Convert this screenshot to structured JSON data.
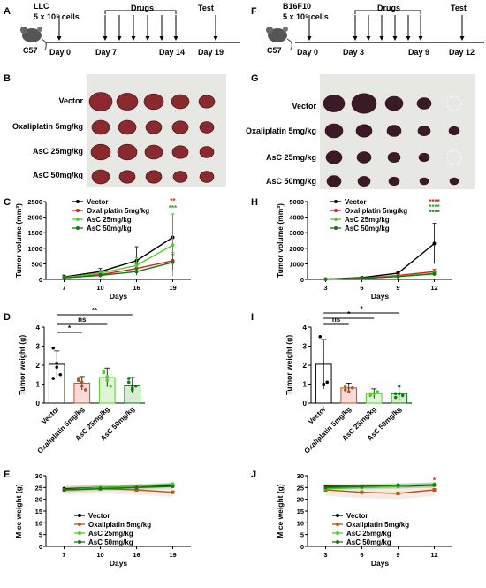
{
  "panels": {
    "A": "A",
    "B": "B",
    "C": "C",
    "D": "D",
    "E": "E",
    "F": "F",
    "G": "G",
    "H": "H",
    "I": "I",
    "J": "J"
  },
  "timelineA": {
    "model": "LLC",
    "cells": "5 x 10⁵ cells",
    "mouse": "C57",
    "drugs_label": "Drugs",
    "test_label": "Test",
    "days": [
      "Day 0",
      "Day 7",
      "Day 14",
      "Day 19"
    ]
  },
  "timelineF": {
    "model": "B16F10",
    "cells": "5 x 10⁵ cells",
    "mouse": "C57",
    "drugs_label": "Drugs",
    "test_label": "Test",
    "days": [
      "Day 0",
      "Day 3",
      "Day 9",
      "Day 12"
    ]
  },
  "groups": [
    "Vector",
    "Oxaliplatin 5mg/kg",
    "AsC 25mg/kg",
    "AsC 50mg/kg"
  ],
  "colors": {
    "vector": "#000000",
    "oxaliplatin": "#d42020",
    "asc25": "#55cc33",
    "asc50": "#117711",
    "ox_weight": "#b8561b"
  },
  "chart_data": [
    {
      "panel": "C",
      "type": "line",
      "x": [
        7,
        10,
        16,
        19
      ],
      "xlabel": "Days",
      "ylabel": "Tumor volume (mm³)",
      "ylim": [
        0,
        2500
      ],
      "yticks": [
        "0",
        "500",
        "1000",
        "1500",
        "2000",
        "2500"
      ],
      "series": [
        {
          "name": "Vector",
          "values": [
            80,
            250,
            600,
            1350
          ]
        },
        {
          "name": "Oxaliplatin 5mg/kg",
          "values": [
            70,
            150,
            350,
            600
          ]
        },
        {
          "name": "AsC 25mg/kg",
          "values": [
            60,
            200,
            450,
            1100
          ]
        },
        {
          "name": "AsC 50mg/kg",
          "values": [
            50,
            130,
            250,
            550
          ]
        }
      ],
      "annotations": [
        "**",
        "***"
      ]
    },
    {
      "panel": "D",
      "type": "bar",
      "categories": [
        "Vector",
        "Oxaliplatin 5mg/kg",
        "AsC 25mg/kg",
        "AsC 50mg/kg"
      ],
      "values": [
        2.05,
        1.05,
        1.35,
        0.95
      ],
      "ylabel": "Tumor weight (g)",
      "ylim": [
        0,
        4
      ],
      "yticks": [
        "0",
        "1",
        "2",
        "3",
        "4"
      ],
      "significance": [
        "*",
        "ns",
        "**"
      ]
    },
    {
      "panel": "E",
      "type": "line",
      "x": [
        7,
        10,
        16,
        19
      ],
      "xlabel": "Days",
      "ylabel": "Mice weight (g)",
      "ylim": [
        0,
        30
      ],
      "yticks": [
        "0",
        "5",
        "10",
        "15",
        "20",
        "25",
        "30"
      ],
      "series": [
        {
          "name": "Vector",
          "values": [
            24.5,
            25.0,
            25.5,
            26.0
          ]
        },
        {
          "name": "Oxaliplatin 5mg/kg",
          "values": [
            24.0,
            24.5,
            24.0,
            23.0
          ]
        },
        {
          "name": "AsC 25mg/kg",
          "values": [
            24.0,
            25.0,
            25.5,
            26.5
          ]
        },
        {
          "name": "AsC 50mg/kg",
          "values": [
            24.0,
            24.5,
            25.0,
            25.5
          ]
        }
      ]
    },
    {
      "panel": "H",
      "type": "line",
      "x": [
        3,
        6,
        9,
        12
      ],
      "xlabel": "Days",
      "ylabel": "Tumor volume (mm³)",
      "ylim": [
        0,
        5000
      ],
      "yticks": [
        "0",
        "1000",
        "2000",
        "3000",
        "4000",
        "5000"
      ],
      "series": [
        {
          "name": "Vector",
          "values": [
            20,
            120,
            400,
            2300
          ]
        },
        {
          "name": "Oxaliplatin 5mg/kg",
          "values": [
            15,
            80,
            250,
            500
          ]
        },
        {
          "name": "AsC 25mg/kg",
          "values": [
            15,
            70,
            200,
            400
          ]
        },
        {
          "name": "AsC 50mg/kg",
          "values": [
            10,
            60,
            180,
            350
          ]
        }
      ],
      "annotations": [
        "****",
        "****",
        "****"
      ]
    },
    {
      "panel": "I",
      "type": "bar",
      "categories": [
        "Vector",
        "Oxaliplatin 5mg/kg",
        "AsC 25mg/kg",
        "AsC 50mg/kg"
      ],
      "values": [
        2.05,
        0.8,
        0.5,
        0.5
      ],
      "ylabel": "Tumor weight (g)",
      "ylim": [
        0,
        4
      ],
      "yticks": [
        "0",
        "1",
        "2",
        "3",
        "4"
      ],
      "significance": [
        "ns",
        "*",
        "*"
      ]
    },
    {
      "panel": "J",
      "type": "line",
      "x": [
        3,
        6,
        9,
        12
      ],
      "xlabel": "Days",
      "ylabel": "Mice weight (g)",
      "ylim": [
        0,
        30
      ],
      "yticks": [
        "0",
        "5",
        "10",
        "15",
        "20",
        "25",
        "30"
      ],
      "series": [
        {
          "name": "Vector",
          "values": [
            25.5,
            25.5,
            25.5,
            26.0
          ]
        },
        {
          "name": "Oxaliplatin 5mg/kg",
          "values": [
            24.0,
            23.0,
            22.5,
            24.0
          ]
        },
        {
          "name": "AsC 25mg/kg",
          "values": [
            24.5,
            25.0,
            25.5,
            26.5
          ]
        },
        {
          "name": "AsC 50mg/kg",
          "values": [
            25.0,
            25.5,
            26.0,
            26.0
          ]
        }
      ],
      "annotations": [
        "*"
      ]
    }
  ]
}
